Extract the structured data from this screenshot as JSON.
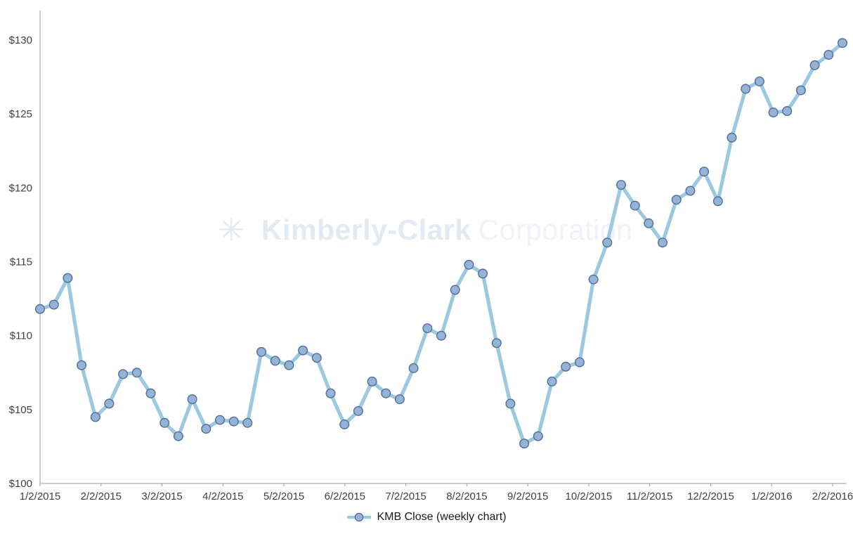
{
  "watermark": {
    "logo_icon": "asterisk-flower-icon",
    "bold": "Kimberly-Clark",
    "light": "Corporation"
  },
  "chart_data": {
    "type": "line",
    "title": "",
    "legend": "KMB Close (weekly chart)",
    "legend_position": "bottom",
    "grid": false,
    "y_tick_format": "$",
    "y_ticks": [
      100,
      105,
      110,
      115,
      120,
      125,
      130
    ],
    "ylim": [
      100,
      130
    ],
    "x_tick_labels": [
      "1/2/2015",
      "2/2/2015",
      "3/2/2015",
      "4/2/2015",
      "5/2/2015",
      "6/2/2015",
      "7/2/2015",
      "8/2/2015",
      "9/2/2015",
      "10/2/2015",
      "11/2/2015",
      "12/2/2015",
      "1/2/2016",
      "2/2/2016"
    ],
    "series": [
      {
        "name": "KMB Close (weekly chart)",
        "values": [
          111.8,
          112.1,
          113.9,
          108.0,
          104.5,
          105.4,
          107.4,
          107.5,
          106.1,
          104.1,
          103.2,
          105.7,
          103.7,
          104.3,
          104.2,
          104.1,
          108.9,
          108.3,
          108.0,
          109.0,
          108.5,
          106.1,
          104.0,
          104.9,
          106.9,
          106.1,
          105.7,
          107.8,
          110.5,
          110.0,
          113.1,
          114.8,
          114.2,
          109.5,
          105.4,
          102.7,
          103.2,
          106.9,
          107.9,
          108.2,
          113.8,
          116.3,
          120.2,
          118.8,
          117.6,
          116.3,
          119.2,
          119.8,
          121.1,
          119.1,
          123.4,
          126.7,
          127.2,
          125.1,
          125.2,
          126.6,
          128.3,
          129.0,
          129.8
        ]
      }
    ],
    "colors": {
      "line": "#9dc9e0",
      "marker_fill": "#95b3d7",
      "marker_stroke": "#4f6e96",
      "axis": "#9b9b9b",
      "axis_text": "#404040",
      "legend_text": "#1a1a1a",
      "watermark_bold": "#e3eaf2",
      "watermark_light": "#eff3f8"
    }
  }
}
